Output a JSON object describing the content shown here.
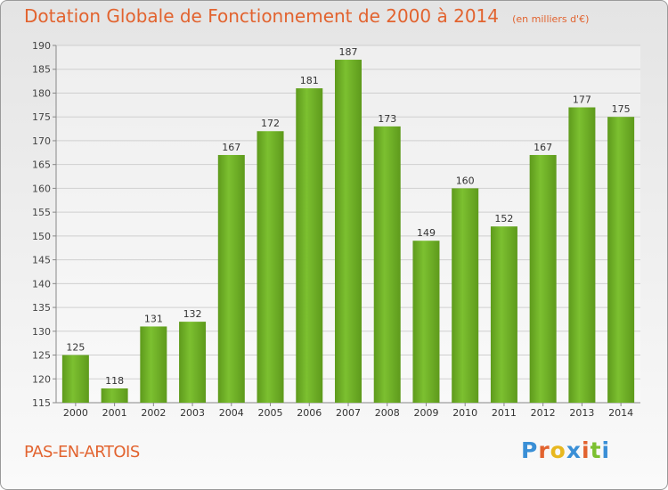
{
  "chart_data": {
    "type": "bar",
    "title": "Dotation Globale de Fonctionnement de 2000 à 2014",
    "unit_label": "(en milliers d'€)",
    "categories": [
      "2000",
      "2001",
      "2002",
      "2003",
      "2004",
      "2005",
      "2006",
      "2007",
      "2008",
      "2009",
      "2010",
      "2011",
      "2012",
      "2013",
      "2014"
    ],
    "values": [
      125,
      118,
      131,
      132,
      167,
      172,
      181,
      187,
      173,
      149,
      160,
      152,
      167,
      177,
      175
    ],
    "ylim": [
      115,
      190
    ],
    "yticks": [
      115,
      120,
      125,
      130,
      135,
      140,
      145,
      150,
      155,
      160,
      165,
      170,
      175,
      180,
      185,
      190
    ],
    "grid": true,
    "bar_color": "#7cc030",
    "bar_color_dark": "#5e9a1c"
  },
  "footer": {
    "commune": "PAS-EN-ARTOIS",
    "logo_text": "Proxiti",
    "logo_colors": [
      "#3a8fd6",
      "#e2632f",
      "#e8b820",
      "#3a8fd6",
      "#e2632f",
      "#7cc030",
      "#3a8fd6"
    ]
  }
}
